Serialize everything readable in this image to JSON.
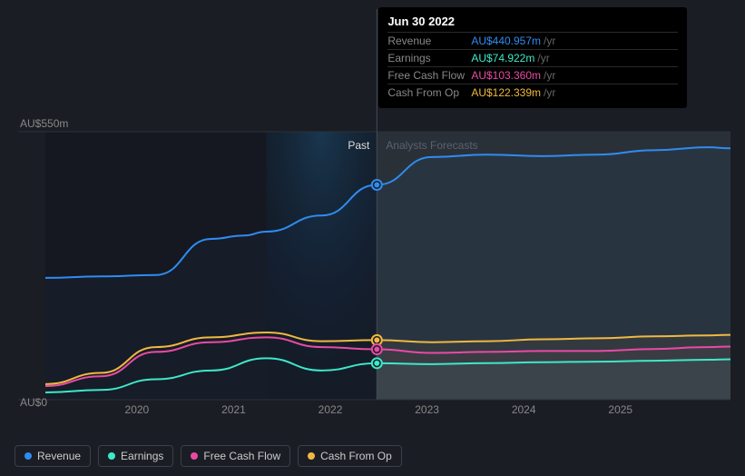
{
  "chart": {
    "background": "#1a1d24",
    "plot_bg_past": "#151821",
    "plot_bg_forecast": "#2a3038",
    "spotlight_gradient_top": "#1a3a55",
    "spotlight_gradient_bottom": "#0a1520",
    "divider_color": "#444a55",
    "gridline_color": "#2c313a",
    "yaxis": {
      "max_label": "AU$550m",
      "min_label": "AU$0",
      "max": 550,
      "min": 0
    },
    "xaxis": {
      "labels": [
        "2020",
        "2021",
        "2022",
        "2023",
        "2024",
        "2025"
      ],
      "min": 2019.5,
      "max": 2025.7
    },
    "past_label": "Past",
    "forecast_label": "Analysts Forecasts",
    "cursor_x": 2022.5,
    "spotlight_start_x": 2021.5,
    "spotlight_end_x": 2022.5,
    "marker_radius": 4,
    "line_width": 2
  },
  "series": {
    "revenue": {
      "label": "Revenue",
      "color": "#2f8cf0",
      "points": [
        [
          2019.5,
          250
        ],
        [
          2020,
          253
        ],
        [
          2020.5,
          256
        ],
        [
          2021,
          330
        ],
        [
          2021.3,
          337
        ],
        [
          2021.5,
          345
        ],
        [
          2022,
          378
        ],
        [
          2022.5,
          440.957
        ],
        [
          2023,
          498
        ],
        [
          2023.5,
          503
        ],
        [
          2024,
          500
        ],
        [
          2024.5,
          503
        ],
        [
          2025,
          512
        ],
        [
          2025.5,
          518
        ],
        [
          2025.7,
          516
        ]
      ],
      "marker_value": 440.957
    },
    "earnings": {
      "label": "Earnings",
      "color": "#3de8c9",
      "points": [
        [
          2019.5,
          15
        ],
        [
          2020,
          20
        ],
        [
          2020.5,
          42
        ],
        [
          2021,
          60
        ],
        [
          2021.5,
          85
        ],
        [
          2022,
          60
        ],
        [
          2022.5,
          74.922
        ],
        [
          2023,
          73
        ],
        [
          2023.5,
          75
        ],
        [
          2024,
          77
        ],
        [
          2024.5,
          78
        ],
        [
          2025,
          80
        ],
        [
          2025.5,
          82
        ],
        [
          2025.7,
          83
        ]
      ],
      "marker_value": 74.922
    },
    "fcf": {
      "label": "Free Cash Flow",
      "color": "#e84ba4",
      "points": [
        [
          2019.5,
          28
        ],
        [
          2020,
          48
        ],
        [
          2020.5,
          98
        ],
        [
          2021,
          118
        ],
        [
          2021.5,
          128
        ],
        [
          2022,
          108
        ],
        [
          2022.5,
          103.36
        ],
        [
          2023,
          96
        ],
        [
          2023.5,
          98
        ],
        [
          2024,
          100
        ],
        [
          2024.5,
          100
        ],
        [
          2025,
          104
        ],
        [
          2025.5,
          108
        ],
        [
          2025.7,
          109
        ]
      ],
      "marker_value": 103.36
    },
    "cashop": {
      "label": "Cash From Op",
      "color": "#f0b840",
      "points": [
        [
          2019.5,
          32
        ],
        [
          2020,
          55
        ],
        [
          2020.5,
          108
        ],
        [
          2021,
          128
        ],
        [
          2021.5,
          138
        ],
        [
          2022,
          120
        ],
        [
          2022.5,
          122.339
        ],
        [
          2023,
          118
        ],
        [
          2023.5,
          120
        ],
        [
          2024,
          124
        ],
        [
          2024.5,
          126
        ],
        [
          2025,
          130
        ],
        [
          2025.5,
          132
        ],
        [
          2025.7,
          133
        ]
      ],
      "marker_value": 122.339
    }
  },
  "tooltip": {
    "title": "Jun 30 2022",
    "unit": "/yr",
    "rows": [
      {
        "label": "Revenue",
        "value": "AU$440.957m",
        "color": "#2f8cf0"
      },
      {
        "label": "Earnings",
        "value": "AU$74.922m",
        "color": "#3de8c9"
      },
      {
        "label": "Free Cash Flow",
        "value": "AU$103.360m",
        "color": "#e84ba4"
      },
      {
        "label": "Cash From Op",
        "value": "AU$122.339m",
        "color": "#f0b840"
      }
    ]
  },
  "legend": [
    {
      "key": "revenue",
      "label": "Revenue",
      "color": "#2f8cf0"
    },
    {
      "key": "earnings",
      "label": "Earnings",
      "color": "#3de8c9"
    },
    {
      "key": "fcf",
      "label": "Free Cash Flow",
      "color": "#e84ba4"
    },
    {
      "key": "cashop",
      "label": "Cash From Op",
      "color": "#f0b840"
    }
  ]
}
